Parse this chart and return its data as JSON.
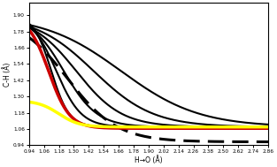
{
  "title": "",
  "xlabel": "H→O (Å)",
  "ylabel": "C-H (Å)",
  "xlim": [
    0.94,
    2.86
  ],
  "ylim": [
    0.94,
    1.99
  ],
  "xticks": [
    0.94,
    1.06,
    1.18,
    1.3,
    1.42,
    1.54,
    1.66,
    1.78,
    1.9,
    2.02,
    2.14,
    2.26,
    2.38,
    2.5,
    2.62,
    2.74,
    2.86
  ],
  "yticks": [
    0.94,
    1.06,
    1.18,
    1.3,
    1.42,
    1.54,
    1.66,
    1.78,
    1.9
  ],
  "background": "#ffffff",
  "curves": [
    {
      "color": "#000000",
      "lw": 2.2,
      "ls": "dashed",
      "ystart": 1.9,
      "yend": 0.965,
      "xstart": 0.97,
      "steepness": 5.0,
      "xinfl": 1.25
    },
    {
      "color": "#cc0000",
      "lw": 2.5,
      "ls": "solid",
      "ystart": 1.9,
      "yend": 1.065,
      "xstart": 0.97,
      "steepness": 12.0,
      "xinfl": 1.1
    },
    {
      "color": "#ffff00",
      "lw": 2.5,
      "ls": "solid",
      "ystart": 1.27,
      "yend": 1.075,
      "xstart": 1.12,
      "steepness": 12.0,
      "xinfl": 1.18
    },
    {
      "color": "#000000",
      "lw": 1.5,
      "ls": "solid",
      "ystart": 1.9,
      "yend": 1.075,
      "xstart": 0.97,
      "steepness": 14.0,
      "xinfl": 1.12
    },
    {
      "color": "#000000",
      "lw": 1.5,
      "ls": "solid",
      "ystart": 1.9,
      "yend": 1.075,
      "xstart": 0.97,
      "steepness": 10.0,
      "xinfl": 1.16
    },
    {
      "color": "#000000",
      "lw": 1.5,
      "ls": "solid",
      "ystart": 1.9,
      "yend": 1.075,
      "xstart": 0.97,
      "steepness": 7.5,
      "xinfl": 1.22
    },
    {
      "color": "#000000",
      "lw": 1.5,
      "ls": "solid",
      "ystart": 1.9,
      "yend": 1.075,
      "xstart": 0.97,
      "steepness": 5.5,
      "xinfl": 1.32
    },
    {
      "color": "#000000",
      "lw": 1.5,
      "ls": "solid",
      "ystart": 1.9,
      "yend": 1.075,
      "xstart": 0.97,
      "steepness": 4.2,
      "xinfl": 1.46
    },
    {
      "color": "#000000",
      "lw": 1.5,
      "ls": "solid",
      "ystart": 1.9,
      "yend": 1.075,
      "xstart": 0.97,
      "steepness": 3.2,
      "xinfl": 1.68
    }
  ]
}
